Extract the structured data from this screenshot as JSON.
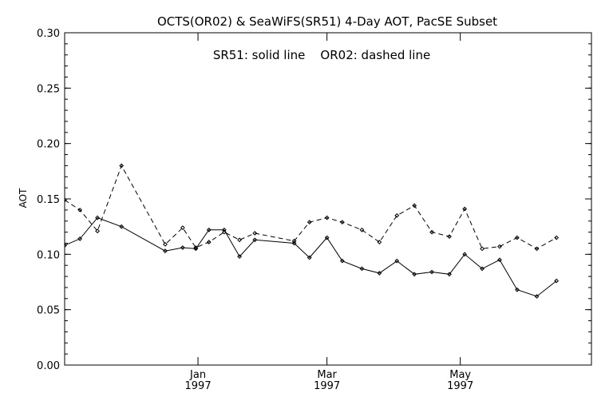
{
  "chart_data": {
    "type": "line",
    "title": "OCTS(OR02) & SeaWiFS(SR51) 4-Day AOT, PacSE Subset",
    "annotation": "SR51: solid line    OR02: dashed line",
    "xlabel": "",
    "ylabel": "AOT",
    "ylim": [
      0.0,
      0.3
    ],
    "yticks": [
      "0.00",
      "0.05",
      "0.10",
      "0.15",
      "0.20",
      "0.25",
      "0.30"
    ],
    "xticks": [
      {
        "month": "Jan",
        "year": "1997",
        "date": "1997-01-01"
      },
      {
        "month": "Mar",
        "year": "1997",
        "date": "1997-03-01"
      },
      {
        "month": "May",
        "year": "1997",
        "date": "1997-05-01"
      }
    ],
    "xlim": [
      "1996-11-01",
      "1997-06-30"
    ],
    "grid": false,
    "series": [
      {
        "name": "SR51",
        "style": "solid",
        "color": "#000000",
        "points": [
          [
            "1996-11-01",
            0.108
          ],
          [
            "1996-11-08",
            0.114
          ],
          [
            "1996-11-16",
            0.133
          ],
          [
            "1996-11-27",
            0.125
          ],
          [
            "1996-12-17",
            0.103
          ],
          [
            "1996-12-25",
            0.106
          ],
          [
            "1996-12-31",
            0.105
          ],
          [
            "1997-01-06",
            0.122
          ],
          [
            "1997-01-13",
            0.122
          ],
          [
            "1997-01-20",
            0.098
          ],
          [
            "1997-01-27",
            0.113
          ],
          [
            "1997-02-14",
            0.11
          ],
          [
            "1997-02-21",
            0.097
          ],
          [
            "1997-03-01",
            0.115
          ],
          [
            "1997-03-08",
            0.094
          ],
          [
            "1997-03-17",
            0.087
          ],
          [
            "1997-03-25",
            0.083
          ],
          [
            "1997-04-02",
            0.094
          ],
          [
            "1997-04-10",
            0.082
          ],
          [
            "1997-04-18",
            0.084
          ],
          [
            "1997-04-26",
            0.082
          ],
          [
            "1997-05-03",
            0.1
          ],
          [
            "1997-05-11",
            0.087
          ],
          [
            "1997-05-19",
            0.095
          ],
          [
            "1997-05-27",
            0.068
          ],
          [
            "1997-06-05",
            0.062
          ],
          [
            "1997-06-14",
            0.076
          ]
        ]
      },
      {
        "name": "OR02",
        "style": "dashed",
        "color": "#000000",
        "points": [
          [
            "1996-11-01",
            0.149
          ],
          [
            "1996-11-08",
            0.14
          ],
          [
            "1996-11-16",
            0.121
          ],
          [
            "1996-11-27",
            0.18
          ],
          [
            "1996-12-17",
            0.109
          ],
          [
            "1996-12-25",
            0.124
          ],
          [
            "1996-12-31",
            0.106
          ],
          [
            "1997-01-06",
            0.111
          ],
          [
            "1997-01-13",
            0.12
          ],
          [
            "1997-01-20",
            0.113
          ],
          [
            "1997-01-27",
            0.119
          ],
          [
            "1997-02-14",
            0.112
          ],
          [
            "1997-02-21",
            0.129
          ],
          [
            "1997-03-01",
            0.133
          ],
          [
            "1997-03-08",
            0.129
          ],
          [
            "1997-03-17",
            0.122
          ],
          [
            "1997-03-25",
            0.111
          ],
          [
            "1997-04-02",
            0.135
          ],
          [
            "1997-04-10",
            0.144
          ],
          [
            "1997-04-18",
            0.12
          ],
          [
            "1997-04-26",
            0.116
          ],
          [
            "1997-05-03",
            0.141
          ],
          [
            "1997-05-11",
            0.105
          ],
          [
            "1997-05-19",
            0.107
          ],
          [
            "1997-05-27",
            0.115
          ],
          [
            "1997-06-05",
            0.105
          ],
          [
            "1997-06-14",
            0.115
          ]
        ]
      }
    ]
  }
}
